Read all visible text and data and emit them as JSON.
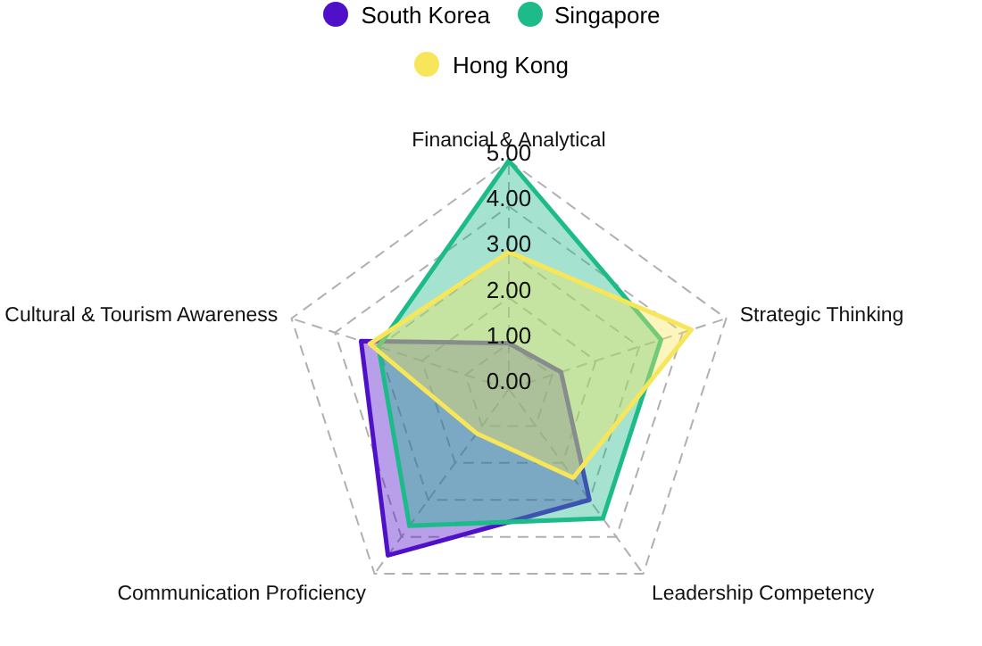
{
  "chart_data": {
    "type": "radar",
    "categories": [
      "Financial & Analytical",
      "Strategic Thinking",
      "Leadership Competency",
      "Communication Proficiency",
      "Cultural & Tourism Awareness"
    ],
    "series": [
      {
        "name": "South Korea",
        "color": "#5010c8",
        "values": [
          1.0,
          1.2,
          3.0,
          4.5,
          3.4
        ]
      },
      {
        "name": "Singapore",
        "color": "#1dba8a",
        "values": [
          5.0,
          3.5,
          3.5,
          3.7,
          3.0
        ]
      },
      {
        "name": "Hong Kong",
        "color": "#f7e65a",
        "values": [
          3.0,
          4.2,
          2.4,
          1.2,
          3.2
        ]
      }
    ],
    "ylim": [
      0,
      5
    ],
    "yticks": [
      {
        "value": 0,
        "label": "0.00"
      },
      {
        "value": 1,
        "label": "1.00"
      },
      {
        "value": 2,
        "label": "2.00"
      },
      {
        "value": 3,
        "label": "3.00"
      },
      {
        "value": 4,
        "label": "4.00"
      },
      {
        "value": 5,
        "label": "5.00"
      }
    ],
    "grid": true,
    "legend": "top",
    "marker": "none",
    "line_style": "solid"
  }
}
